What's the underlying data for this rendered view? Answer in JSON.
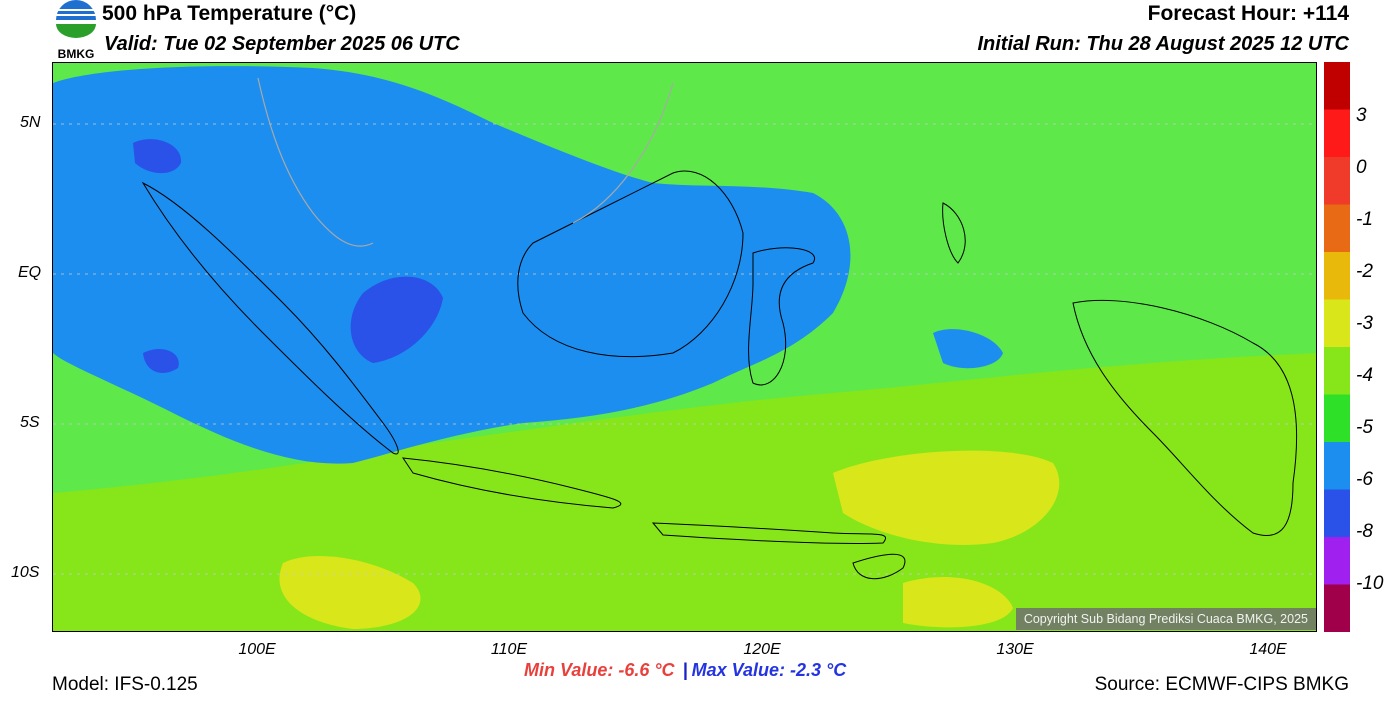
{
  "header": {
    "title": "500 hPa Temperature (°C)",
    "valid": "Valid: Tue 02 September 2025 06 UTC",
    "forecast_hour": "Forecast Hour: +114",
    "initial_run": "Initial Run: Thu 28 August 2025 12 UTC",
    "logo_text": "BMKG"
  },
  "axes": {
    "lat_labels": [
      "5N",
      "EQ",
      "5S",
      "10S"
    ],
    "lon_labels": [
      "100E",
      "110E",
      "120E",
      "130E",
      "140E"
    ]
  },
  "colorbar": {
    "labels": [
      "3",
      "0",
      "-1",
      "-2",
      "-3",
      "-4",
      "-5",
      "-6",
      "-8",
      "-10"
    ],
    "colors": [
      "#c00000",
      "#ff1a1a",
      "#f03a2a",
      "#e86a14",
      "#e8b80a",
      "#d8e61a",
      "#86e61a",
      "#2ee028",
      "#1c8ef0",
      "#2a52e8",
      "#a020f0",
      "#a0004a"
    ]
  },
  "stats": {
    "min_label": "Min Value: -6.6 °C",
    "separator": "|",
    "max_label": "Max Value: -2.3 °C"
  },
  "footer": {
    "model": "Model: IFS-0.125",
    "source": "Source: ECMWF-CIPS BMKG",
    "copyright": "Copyright Sub Bidang Prediksi Cuaca BMKG, 2025"
  }
}
